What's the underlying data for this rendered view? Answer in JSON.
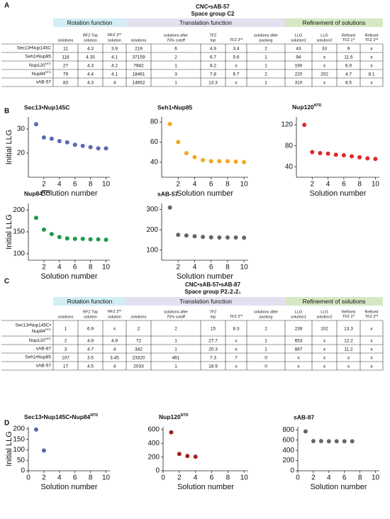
{
  "panels": [
    "A",
    "B",
    "C",
    "D"
  ],
  "table_a": {
    "title": "CNC•sAB-57",
    "subtitle": "Space group C2",
    "groups": [
      "Rotation function",
      "Translation function",
      "Refinement of solutions"
    ],
    "columns": [
      [
        "solutions"
      ],
      [
        "RFZ Top",
        "solution"
      ],
      [
        {
          "pre": "RFZ 2",
          "sup": "nd"
        },
        "solution"
      ],
      [
        "solutions"
      ],
      [
        "solutions after",
        "75% cutoff"
      ],
      [
        "TFZ",
        "top"
      ],
      [
        {
          "pre": "TFZ 2",
          "sup": "nd"
        }
      ],
      [
        "solutions after",
        "packing"
      ],
      [
        "LLG",
        "solution1"
      ],
      [
        "LLG",
        "solution2"
      ],
      [
        "Refined",
        {
          "pre": "TFZ 1",
          "sup": "st"
        }
      ],
      [
        "Refined",
        {
          "pre": "TFZ 2",
          "sup": "nd"
        }
      ]
    ],
    "rows": [
      {
        "label": [
          "Sec13•Nup145C"
        ],
        "cells": [
          "11",
          "4.3",
          "3.9",
          "219",
          "6",
          "4.9",
          "3.4",
          "2",
          "43",
          "33",
          "9",
          "x"
        ]
      },
      {
        "label": [
          "Seh1•Nup85"
        ],
        "cells": [
          "118",
          "4.35",
          "4.1",
          "37159",
          "2",
          "6.7",
          "5.6",
          "1",
          "94",
          "x",
          "11.6",
          "x"
        ]
      },
      {
        "label": [
          {
            "pre": "Nup120",
            "sup": "NTD"
          }
        ],
        "cells": [
          "27",
          "4.3",
          "4.2",
          "7882",
          "1",
          "8.2",
          "x",
          "1",
          "190",
          "x",
          "6.9",
          "x"
        ]
      },
      {
        "label": [
          {
            "pre": "Nup84",
            "sup": "NTD"
          }
        ],
        "cells": [
          "79",
          "4.4",
          "4.1",
          "18461",
          "3",
          "7.8",
          "6.7",
          "2",
          "220",
          "202",
          "4.7",
          "8.1"
        ]
      },
      {
        "label": [
          "sAB-57"
        ],
        "cells": [
          "83",
          "4.3",
          "4",
          "14652",
          "1",
          "13.3",
          "x",
          "1",
          "310",
          "x",
          "8.5",
          "x"
        ]
      }
    ]
  },
  "table_c": {
    "title": "CNC•sAB-57•sAB-87",
    "subtitle": "Space group P2₁2₁2₁",
    "groups": [
      "Rotation function",
      "Translation function",
      "Refinement of solutions"
    ],
    "columns": [
      [
        "solutions"
      ],
      [
        "RFZ Top",
        "solution"
      ],
      [
        {
          "pre": "RFZ 2",
          "sup": "nd"
        },
        "solution"
      ],
      [
        "solutions"
      ],
      [
        "solutions after",
        "75% cutoff"
      ],
      [
        "TFZ",
        "top"
      ],
      [
        {
          "pre": "TFZ 2",
          "sup": "nd"
        }
      ],
      [
        "solutions after",
        "packing"
      ],
      [
        "LLG",
        "solution1"
      ],
      [
        "LLG",
        "solution2"
      ],
      [
        "Refined",
        {
          "pre": "TFZ 1",
          "sup": "st"
        }
      ],
      [
        "Refined",
        {
          "pre": "TFZ 2",
          "sup": "nd"
        }
      ]
    ],
    "rows": [
      {
        "label": [
          "Sec13•Nup145C•",
          {
            "pre": "Nup84",
            "sup": "NTD"
          }
        ],
        "cells": [
          "1",
          "6.9",
          "x",
          "2",
          "2",
          "15",
          "8.3",
          "2",
          "239",
          "102",
          "13.3",
          "x"
        ]
      },
      {
        "label": [
          {
            "pre": "Nup120",
            "sup": "NTD"
          }
        ],
        "cells": [
          "2",
          "4.9",
          "4.9",
          "72",
          "1",
          "27.7",
          "x",
          "1",
          "653",
          "x",
          "12.2",
          "x"
        ]
      },
      {
        "label": [
          "sAB-87"
        ],
        "cells": [
          "3",
          "4.7",
          "4",
          "342",
          "1",
          "20.3",
          "x",
          "1",
          "887",
          "x",
          "11.2",
          "x"
        ]
      },
      {
        "label": [
          "Seh1•Nup85"
        ],
        "cells": [
          "107",
          "3.5",
          "3.45",
          "23320",
          "461",
          "7.3",
          "7",
          "0",
          "x",
          "x",
          "x",
          "x"
        ]
      },
      {
        "label": [
          "sAB-57"
        ],
        "cells": [
          "17",
          "4.5",
          "4",
          "2033",
          "1",
          "18.9",
          "x",
          "0",
          "x",
          "x",
          "x",
          "x"
        ]
      }
    ]
  },
  "chart_data": [
    {
      "type": "scatter",
      "title": "Sec13•Nup145C",
      "x": [
        1,
        2,
        3,
        4,
        5,
        6,
        7,
        8,
        9,
        10
      ],
      "values": [
        32,
        26.5,
        26,
        25,
        24.5,
        23.5,
        23,
        22.5,
        22,
        22
      ],
      "color": "#5a68b3",
      "xlim": [
        0,
        10.5
      ],
      "ylim": [
        10,
        35
      ],
      "xticks": [
        2,
        4,
        6,
        8,
        10
      ],
      "yticks": [
        20,
        30
      ],
      "xlabel": "Solution number",
      "ylabel": "Initial LLG"
    },
    {
      "type": "scatter",
      "title": "Seh1•Nup85",
      "x": [
        1,
        2,
        3,
        4,
        5,
        6,
        7,
        8,
        9,
        10
      ],
      "values": [
        78,
        60,
        49,
        45,
        42,
        41,
        41,
        41,
        40.5,
        40
      ],
      "color": "#f2a81d",
      "xlim": [
        0,
        10.5
      ],
      "ylim": [
        25,
        85
      ],
      "xticks": [
        2,
        4,
        6,
        8,
        10
      ],
      "yticks": [
        40,
        60,
        80
      ],
      "xlabel": "Solution number"
    },
    {
      "type": "scatter",
      "title": {
        "pre": "Nup120",
        "sup": "NTD"
      },
      "x": [
        1,
        2,
        3,
        4,
        5,
        6,
        7,
        8,
        9,
        10
      ],
      "values": [
        120,
        68,
        66,
        65,
        63,
        62,
        60,
        58,
        56,
        55
      ],
      "color": "#e0282a",
      "xlim": [
        0,
        10.5
      ],
      "ylim": [
        20,
        135
      ],
      "xticks": [
        2,
        4,
        6,
        8,
        10
      ],
      "yticks": [
        40,
        80,
        120
      ],
      "xlabel": "Solution number"
    },
    {
      "type": "scatter",
      "title": {
        "pre": "Nup84",
        "sup": "NTD"
      },
      "x": [
        1,
        2,
        3,
        4,
        5,
        6,
        7,
        8,
        9,
        10
      ],
      "values": [
        182,
        155,
        145,
        138,
        135,
        134,
        134,
        133,
        133,
        132
      ],
      "color": "#1f9a4a",
      "xlim": [
        0,
        10.5
      ],
      "ylim": [
        85,
        215
      ],
      "xticks": [
        2,
        4,
        6,
        8,
        10
      ],
      "yticks": [
        100,
        150,
        200
      ],
      "xlabel": "Solution number",
      "ylabel": "Initial LLG"
    },
    {
      "type": "scatter",
      "title": "sAB-57",
      "x": [
        1,
        2,
        3,
        4,
        5,
        6,
        7,
        8,
        9,
        10
      ],
      "values": [
        310,
        175,
        172,
        168,
        165,
        163,
        162,
        162,
        162,
        161
      ],
      "color": "#666666",
      "xlim": [
        0,
        10.5
      ],
      "ylim": [
        50,
        330
      ],
      "xticks": [
        2,
        4,
        6,
        8,
        10
      ],
      "yticks": [
        100,
        200,
        300
      ],
      "xlabel": "Solution number"
    },
    {
      "type": "scatter",
      "title": {
        "pre": "Sec13•Nup145C•Nup84",
        "sup": "NTD"
      },
      "x": [
        1,
        2
      ],
      "values": [
        197,
        97
      ],
      "color": "#5a68b3",
      "xlim": [
        0,
        10.5
      ],
      "ylim": [
        0,
        210
      ],
      "xticks": [
        0,
        2,
        4,
        6,
        8,
        10
      ],
      "yticks": [
        0,
        50,
        100,
        150,
        200
      ],
      "xlabel": "Solution number",
      "ylabel": "Initial LLG"
    },
    {
      "type": "scatter",
      "title": {
        "pre": "Nup120",
        "sup": "NTD"
      },
      "x": [
        1,
        2,
        3,
        4
      ],
      "values": [
        560,
        245,
        215,
        205
      ],
      "color": "#a32020",
      "xlim": [
        0,
        10.5
      ],
      "ylim": [
        0,
        640
      ],
      "xticks": [
        0,
        2,
        4,
        6,
        8,
        10
      ],
      "yticks": [
        0,
        200,
        400,
        600
      ],
      "xlabel": "Solution number"
    },
    {
      "type": "scatter",
      "title": "sAB-87",
      "x": [
        1,
        2,
        3,
        4,
        5,
        6,
        7
      ],
      "values": [
        770,
        580,
        580,
        578,
        577,
        577,
        577
      ],
      "color": "#666666",
      "xlim": [
        0,
        10.5
      ],
      "ylim": [
        0,
        860
      ],
      "xticks": [
        0,
        2,
        4,
        6,
        8,
        10
      ],
      "yticks": [
        0,
        200,
        400,
        600,
        800
      ],
      "xlabel": "Solution number"
    }
  ]
}
